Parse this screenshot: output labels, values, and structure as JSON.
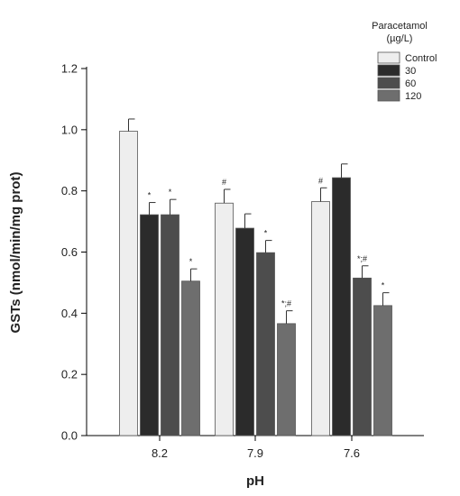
{
  "chart_data": {
    "type": "bar",
    "legend_title_line1": "Paracetamol",
    "legend_title_line2": "(µg/L)",
    "xlabel": "pH",
    "ylabel": "GSTs (nmol/min/mg prot)",
    "ylim": [
      0,
      1.2
    ],
    "yticks": [
      "0.0",
      "0.2",
      "0.4",
      "0.6",
      "0.8",
      "1.0",
      "1.2"
    ],
    "categories": [
      "8.2",
      "7.9",
      "7.6"
    ],
    "legend_position": "top-right",
    "series": [
      {
        "name": "Control",
        "color": "#eeeeee",
        "values": [
          0.995,
          0.76,
          0.765
        ],
        "errors": [
          0.04,
          0.045,
          0.045
        ],
        "marks": [
          "",
          "#",
          "#"
        ]
      },
      {
        "name": "30",
        "color": "#2b2b2b",
        "values": [
          0.722,
          0.678,
          0.843
        ],
        "errors": [
          0.04,
          0.047,
          0.045
        ],
        "marks": [
          "*",
          "",
          ""
        ]
      },
      {
        "name": "60",
        "color": "#4d4d4d",
        "values": [
          0.722,
          0.598,
          0.515
        ],
        "errors": [
          0.05,
          0.04,
          0.04
        ],
        "marks": [
          "*",
          "*",
          "*;#"
        ]
      },
      {
        "name": "120",
        "color": "#6e6e6e",
        "values": [
          0.505,
          0.366,
          0.425
        ],
        "errors": [
          0.04,
          0.042,
          0.042
        ],
        "marks": [
          "*",
          "*;#",
          "*"
        ]
      }
    ]
  }
}
